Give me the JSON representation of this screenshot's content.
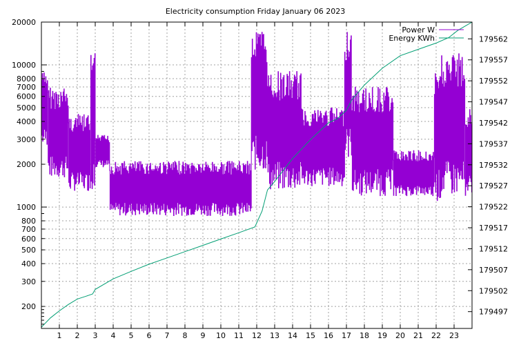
{
  "chart_data": {
    "type": "line",
    "title": "Electricity consumption Friday January 06 2023",
    "xlabel": "",
    "ylabel": "",
    "y2label": "",
    "grid": true,
    "legend_position": "top-right",
    "x_range": [
      0,
      24
    ],
    "x_ticks": [
      1,
      2,
      3,
      4,
      5,
      6,
      7,
      8,
      9,
      10,
      11,
      12,
      13,
      14,
      15,
      16,
      17,
      18,
      19,
      20,
      21,
      22,
      23
    ],
    "y_scale": "log",
    "y_range": [
      140,
      20000
    ],
    "y_ticks": [
      200,
      300,
      400,
      500,
      600,
      700,
      800,
      1000,
      2000,
      3000,
      4000,
      5000,
      6000,
      7000,
      8000,
      10000,
      20000
    ],
    "y2_range": [
      179493,
      179566
    ],
    "y2_ticks": [
      179497,
      179502,
      179507,
      179512,
      179517,
      179522,
      179527,
      179532,
      179537,
      179542,
      179547,
      179552,
      179557,
      179562
    ],
    "series": [
      {
        "name": "Power W",
        "axis": "y",
        "color": "#9400d3",
        "segments": [
          {
            "start": 0.0,
            "end": 0.35,
            "low": 2700,
            "high": 9000
          },
          {
            "start": 0.35,
            "end": 1.5,
            "low": 1600,
            "high": 7000
          },
          {
            "start": 1.5,
            "end": 2.75,
            "low": 1300,
            "high": 4500
          },
          {
            "start": 2.75,
            "end": 3.0,
            "low": 1300,
            "high": 12000
          },
          {
            "start": 3.0,
            "end": 3.8,
            "low": 1900,
            "high": 3200
          },
          {
            "start": 3.8,
            "end": 11.7,
            "low": 870,
            "high": 2100
          },
          {
            "start": 11.7,
            "end": 12.6,
            "low": 1800,
            "high": 18000
          },
          {
            "start": 12.6,
            "end": 14.5,
            "low": 1300,
            "high": 9000
          },
          {
            "start": 14.5,
            "end": 16.9,
            "low": 1400,
            "high": 5000
          },
          {
            "start": 16.9,
            "end": 17.3,
            "low": 2200,
            "high": 18000
          },
          {
            "start": 17.3,
            "end": 19.6,
            "low": 1200,
            "high": 7000
          },
          {
            "start": 19.6,
            "end": 21.9,
            "low": 1200,
            "high": 2500
          },
          {
            "start": 21.9,
            "end": 22.3,
            "low": 1100,
            "high": 9000
          },
          {
            "start": 22.3,
            "end": 23.6,
            "low": 1200,
            "high": 12000
          },
          {
            "start": 23.6,
            "end": 24.0,
            "low": 1200,
            "high": 5000
          }
        ]
      },
      {
        "name": "Energy KWh",
        "axis": "y2",
        "color": "#009e73",
        "x": [
          0,
          0.5,
          1,
          1.5,
          2,
          2.5,
          2.85,
          3.0,
          4,
          5,
          6,
          7,
          8,
          9,
          10,
          11,
          11.9,
          12.3,
          12.6,
          13,
          14,
          15,
          16,
          16.5,
          17.0,
          17.3,
          18,
          19,
          20,
          21,
          22,
          22.7,
          23.2,
          23.6,
          24
        ],
        "values": [
          179493.3,
          179495.5,
          179497.2,
          179498.7,
          179500.0,
          179500.7,
          179501.2,
          179502.3,
          179504.8,
          179506.6,
          179508.3,
          179509.8,
          179511.3,
          179512.8,
          179514.3,
          179515.8,
          179517.2,
          179521.0,
          179526.0,
          179528.0,
          179533.5,
          179538.0,
          179542.0,
          179543.0,
          179545.0,
          179547.5,
          179551.0,
          179555.0,
          179558.0,
          179559.5,
          179561.0,
          179562.3,
          179564.0,
          179565.0,
          179566.0
        ]
      }
    ]
  }
}
